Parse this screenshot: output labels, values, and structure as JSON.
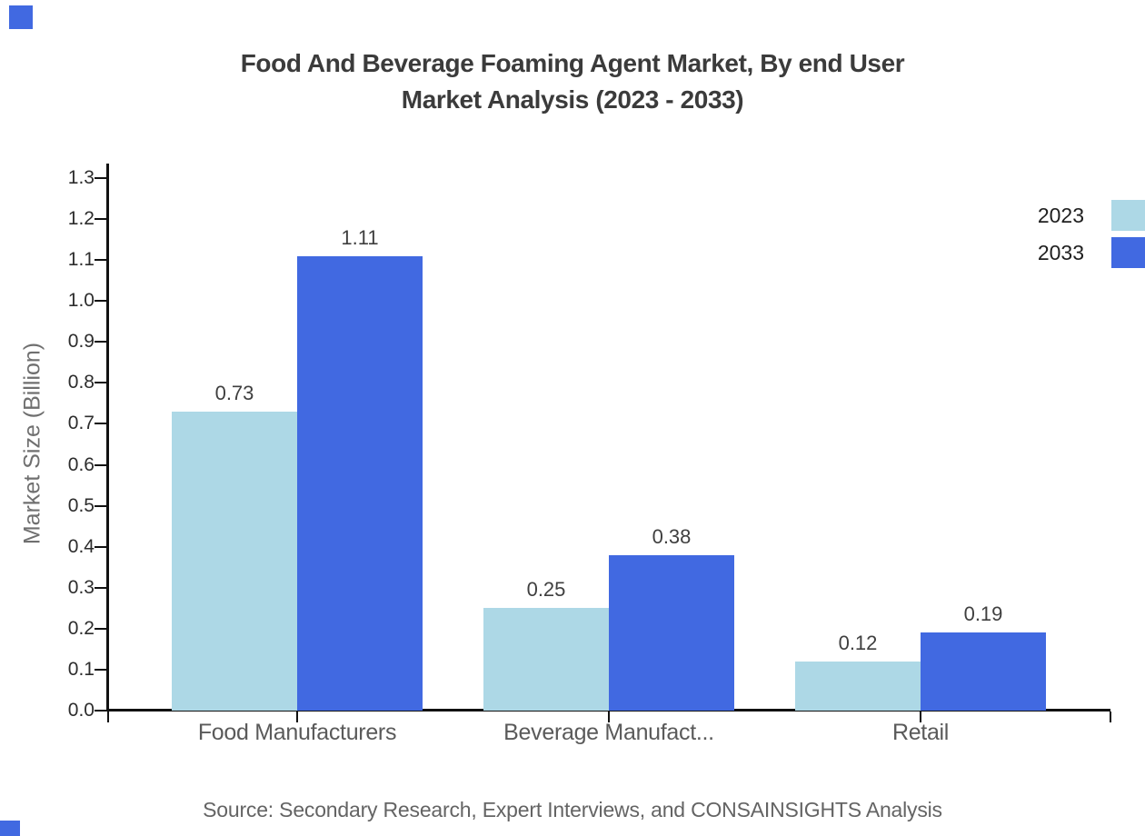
{
  "title": {
    "line1": "Food And Beverage Foaming Agent Market, By end User",
    "line2": "Market Analysis (2023 - 2033)"
  },
  "source_note": "Source: Secondary Research, Expert Interviews, and CONSAINSIGHTS Analysis",
  "colors": {
    "series_2023": "#ADD8E6",
    "series_2033": "#4169E1",
    "axis": "#111111",
    "title_text": "#3B3B3B",
    "muted_text": "#646464",
    "brand_mark": "#4169E1"
  },
  "legend": {
    "position": "top-right",
    "items": [
      {
        "label": "2023",
        "color": "#ADD8E6"
      },
      {
        "label": "2033",
        "color": "#4169E1"
      }
    ]
  },
  "chart_data": {
    "type": "bar",
    "title": "Food And Beverage Foaming Agent Market, By end User Market Analysis (2023 - 2033)",
    "categories": [
      "Food Manufacturers",
      "Beverage Manufact...",
      "Retail"
    ],
    "series": [
      {
        "name": "2023",
        "color": "#ADD8E6",
        "values": [
          0.73,
          0.25,
          0.12
        ]
      },
      {
        "name": "2033",
        "color": "#4169E1",
        "values": [
          1.11,
          0.38,
          0.19
        ]
      }
    ],
    "value_labels": [
      "0.73",
      "1.11",
      "0.25",
      "0.38",
      "0.12",
      "0.19"
    ],
    "xlabel": "",
    "ylabel": "Market Size (Billion)",
    "ylim": [
      0.0,
      1.3
    ],
    "ytick_step": 0.1,
    "ytick_labels": [
      "0.0",
      "0.1",
      "0.2",
      "0.3",
      "0.4",
      "0.5",
      "0.6",
      "0.7",
      "0.8",
      "0.9",
      "1.0",
      "1.1",
      "1.2",
      "1.3"
    ],
    "grid": false,
    "legend_position": "top-right"
  }
}
